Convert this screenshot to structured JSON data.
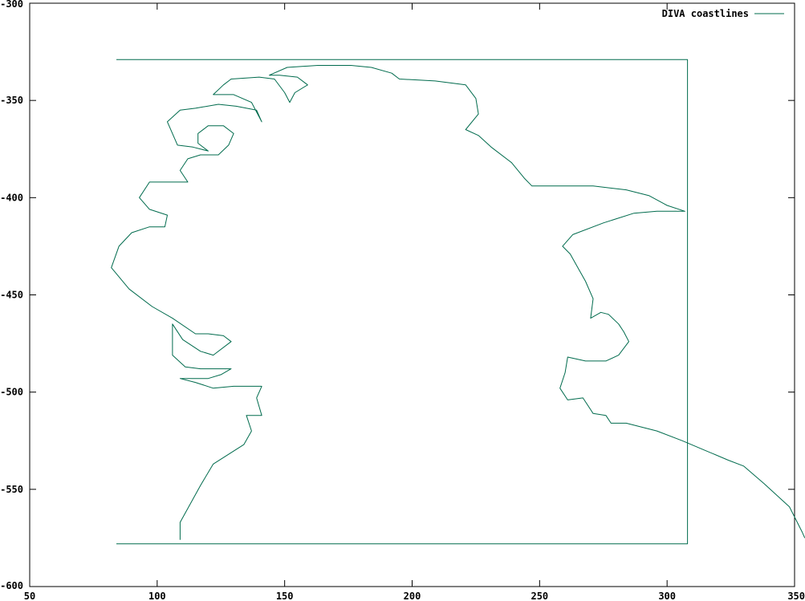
{
  "chart_data": {
    "type": "line",
    "title": "",
    "xlabel": "",
    "ylabel": "",
    "xlim": [
      50,
      350
    ],
    "ylim": [
      -600,
      -300
    ],
    "x_ticks": [
      50,
      100,
      150,
      200,
      250,
      300,
      350
    ],
    "y_ticks": [
      -300,
      -350,
      -400,
      -450,
      -500,
      -550,
      -600
    ],
    "legend": {
      "position": "top-right"
    },
    "series": [
      {
        "name": "DIVA coastlines",
        "color": "#006b4d",
        "segments": [
          [
            [
              84,
              -329
            ],
            [
              308,
              -329
            ],
            [
              308,
              -578
            ],
            [
              84,
              -578
            ]
          ],
          [
            [
              109,
              -576
            ],
            [
              109,
              -567
            ],
            [
              117,
              -548
            ],
            [
              122,
              -537
            ],
            [
              134,
              -527
            ],
            [
              137,
              -520
            ],
            [
              135,
              -512
            ],
            [
              141,
              -512
            ],
            [
              139,
              -503
            ],
            [
              141,
              -497
            ],
            [
              130,
              -497
            ],
            [
              122,
              -498
            ],
            [
              115,
              -495
            ],
            [
              109,
              -493
            ],
            [
              120,
              -493
            ],
            [
              125,
              -491
            ],
            [
              129,
              -488
            ],
            [
              117,
              -488
            ],
            [
              111,
              -487
            ],
            [
              106,
              -481
            ],
            [
              106,
              -465
            ],
            [
              110,
              -473
            ],
            [
              117,
              -479
            ],
            [
              122,
              -481
            ],
            [
              129,
              -474
            ],
            [
              126,
              -471
            ],
            [
              120,
              -470
            ],
            [
              115,
              -470
            ],
            [
              106,
              -462
            ],
            [
              98,
              -456
            ],
            [
              89,
              -447
            ],
            [
              82,
              -436
            ],
            [
              85,
              -425
            ],
            [
              90,
              -418
            ],
            [
              97,
              -415
            ],
            [
              103,
              -415
            ],
            [
              104,
              -409
            ],
            [
              97,
              -406
            ],
            [
              93,
              -400
            ],
            [
              97,
              -392
            ],
            [
              104,
              -392
            ],
            [
              112,
              -392
            ],
            [
              109,
              -386
            ],
            [
              112,
              -380
            ],
            [
              117,
              -378
            ],
            [
              124,
              -378
            ],
            [
              128,
              -373
            ],
            [
              130,
              -367
            ],
            [
              126,
              -363
            ],
            [
              120,
              -363
            ],
            [
              116,
              -367
            ],
            [
              116,
              -372
            ],
            [
              120,
              -376
            ],
            [
              114,
              -374
            ],
            [
              108,
              -373
            ],
            [
              104,
              -361
            ],
            [
              109,
              -355
            ],
            [
              115,
              -354
            ],
            [
              124,
              -352
            ],
            [
              131,
              -353
            ],
            [
              139,
              -355
            ],
            [
              141,
              -361
            ],
            [
              137,
              -351
            ],
            [
              130,
              -347
            ],
            [
              122,
              -347
            ],
            [
              126,
              -342
            ],
            [
              129,
              -339
            ],
            [
              140,
              -338
            ],
            [
              146,
              -339
            ],
            [
              150,
              -346
            ],
            [
              152,
              -351
            ],
            [
              154,
              -346
            ],
            [
              159,
              -342
            ],
            [
              155,
              -338
            ],
            [
              148,
              -337
            ],
            [
              144,
              -337
            ],
            [
              151,
              -333
            ],
            [
              163,
              -332
            ],
            [
              176,
              -332
            ],
            [
              184,
              -333
            ],
            [
              192,
              -336
            ],
            [
              195,
              -339
            ],
            [
              209,
              -340
            ],
            [
              221,
              -342
            ],
            [
              225,
              -349
            ],
            [
              226,
              -357
            ],
            [
              221,
              -365
            ],
            [
              226,
              -368
            ],
            [
              231,
              -374
            ],
            [
              239,
              -382
            ],
            [
              244,
              -390
            ],
            [
              247,
              -394
            ],
            [
              261,
              -394
            ],
            [
              271,
              -394
            ],
            [
              284,
              -396
            ],
            [
              293,
              -399
            ],
            [
              300,
              -404
            ],
            [
              307,
              -407
            ],
            [
              296,
              -407
            ],
            [
              287,
              -408
            ],
            [
              275,
              -413
            ],
            [
              263,
              -419
            ],
            [
              259,
              -425
            ],
            [
              262,
              -429
            ],
            [
              265,
              -436
            ],
            [
              268,
              -443
            ],
            [
              271,
              -452
            ],
            [
              270,
              -462
            ],
            [
              274,
              -459
            ],
            [
              277,
              -460
            ],
            [
              281,
              -465
            ],
            [
              283,
              -469
            ],
            [
              285,
              -474
            ],
            [
              281,
              -481
            ],
            [
              276,
              -484
            ],
            [
              268,
              -484
            ],
            [
              261,
              -482
            ],
            [
              260,
              -490
            ],
            [
              258,
              -498
            ],
            [
              261,
              -504
            ],
            [
              267,
              -503
            ],
            [
              270,
              -509
            ],
            [
              271,
              -511
            ],
            [
              276,
              -512
            ],
            [
              278,
              -516
            ],
            [
              284,
              -516
            ],
            [
              296,
              -520
            ],
            [
              306,
              -525
            ],
            [
              315,
              -530
            ],
            [
              324,
              -535
            ],
            [
              330,
              -538
            ],
            [
              338,
              -547
            ],
            [
              348,
              -559
            ],
            [
              353,
              -572
            ],
            [
              354,
              -575
            ]
          ]
        ]
      }
    ]
  }
}
